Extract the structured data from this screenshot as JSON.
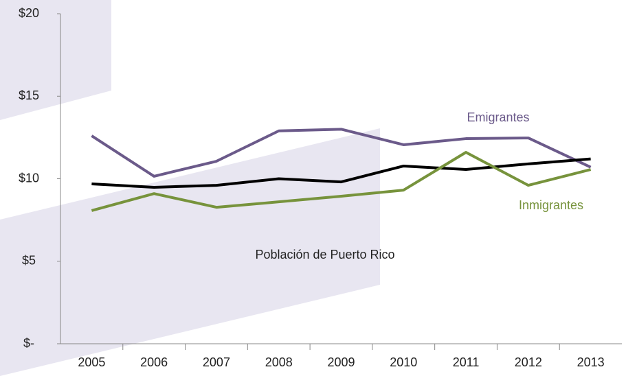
{
  "chart_data": {
    "type": "line",
    "categories": [
      "2005",
      "2006",
      "2007",
      "2008",
      "2009",
      "2010",
      "2011",
      "2012",
      "2013"
    ],
    "series": [
      {
        "name": "Emigrantes",
        "color": "#6b5a8a",
        "values": [
          12.6,
          10.15,
          11.06,
          12.9,
          13.0,
          12.06,
          12.43,
          12.47,
          10.7
        ]
      },
      {
        "name": "Población de Puerto Rico",
        "color": "#000000",
        "values": [
          9.69,
          9.48,
          9.6,
          10.0,
          9.81,
          10.77,
          10.56,
          10.9,
          11.2
        ]
      },
      {
        "name": "Inmigrantes",
        "color": "#77933c",
        "values": [
          8.07,
          9.1,
          8.27,
          8.6,
          8.94,
          9.31,
          11.6,
          9.6,
          10.56
        ]
      }
    ],
    "ylim": [
      0,
      20
    ],
    "yticks": [
      {
        "value": 0,
        "label": "$-"
      },
      {
        "value": 5,
        "label": "$5"
      },
      {
        "value": 10,
        "label": "$10"
      },
      {
        "value": 15,
        "label": "$15"
      },
      {
        "value": 20,
        "label": "$20"
      }
    ],
    "grid": false
  }
}
